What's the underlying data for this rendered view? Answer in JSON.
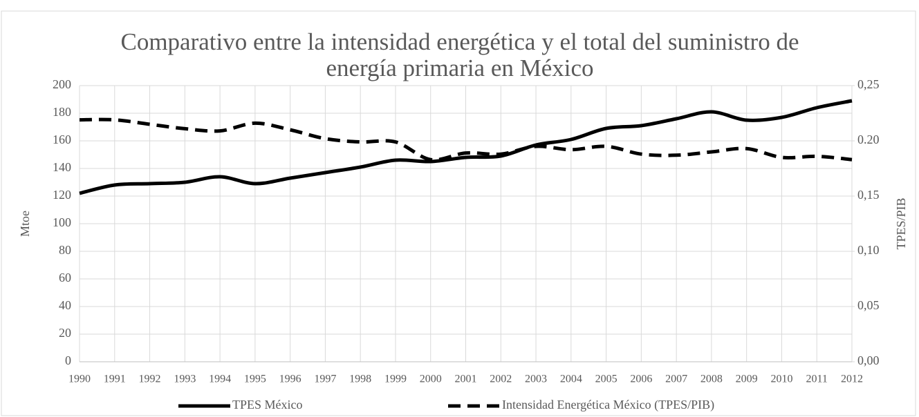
{
  "chart_data": {
    "type": "line",
    "title": "Comparativo entre la intensidad energética y el total del suministro de energía primaria en México",
    "y_label": "Mtoe",
    "y2_label": "TPES/PIB",
    "categories": [
      "1990",
      "1991",
      "1992",
      "1993",
      "1994",
      "1995",
      "1996",
      "1997",
      "1998",
      "1999",
      "2000",
      "2001",
      "2002",
      "2003",
      "2004",
      "2005",
      "2006",
      "2007",
      "2008",
      "2009",
      "2010",
      "2011",
      "2012"
    ],
    "series": [
      {
        "name": "TPES México",
        "color": "#000000",
        "dash": "solid",
        "values": [
          122,
          128,
          129,
          130,
          134,
          129,
          133,
          137,
          141,
          146,
          145,
          148,
          149,
          157,
          161,
          169,
          171,
          176,
          181,
          175,
          177,
          184,
          189
        ]
      },
      {
        "name": "Intensidad Energética México (TPES/PIB)",
        "color": "#000000",
        "dash": "dashed",
        "axis": "y2",
        "values": [
          0.219,
          0.219,
          0.215,
          0.211,
          0.209,
          0.216,
          0.21,
          0.202,
          0.199,
          0.199,
          0.183,
          0.189,
          0.188,
          0.195,
          0.192,
          0.195,
          0.188,
          0.187,
          0.19,
          0.193,
          0.185,
          0.186,
          0.183
        ]
      }
    ],
    "ylim": [
      0,
      200
    ],
    "yticks": [
      0,
      20,
      40,
      60,
      80,
      100,
      120,
      140,
      160,
      180,
      200
    ],
    "y2lim": [
      0,
      0.25
    ],
    "y2ticks": [
      {
        "value": 0,
        "label": "0,00"
      },
      {
        "value": 0.05,
        "label": "0,05"
      },
      {
        "value": 0.1,
        "label": "0,10"
      },
      {
        "value": 0.15,
        "label": "0,15"
      },
      {
        "value": 0.2,
        "label": "0.20"
      },
      {
        "value": 0.25,
        "label": "0,25"
      }
    ],
    "grid": true,
    "legend": "bottom"
  }
}
